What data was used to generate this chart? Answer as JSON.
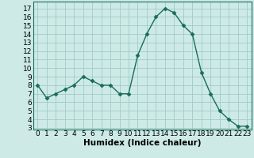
{
  "x": [
    0,
    1,
    2,
    3,
    4,
    5,
    6,
    7,
    8,
    9,
    10,
    11,
    12,
    13,
    14,
    15,
    16,
    17,
    18,
    19,
    20,
    21,
    22,
    23
  ],
  "y": [
    8,
    6.5,
    7,
    7.5,
    8,
    9,
    8.5,
    8,
    8,
    7,
    7,
    11.5,
    14,
    16,
    17,
    16.5,
    15,
    14,
    9.5,
    7,
    5,
    4,
    3.2,
    3.2
  ],
  "xlabel": "Humidex (Indice chaleur)",
  "xlim": [
    -0.5,
    23.5
  ],
  "ylim": [
    2.8,
    17.8
  ],
  "yticks": [
    3,
    4,
    5,
    6,
    7,
    8,
    9,
    10,
    11,
    12,
    13,
    14,
    15,
    16,
    17
  ],
  "xticks": [
    0,
    1,
    2,
    3,
    4,
    5,
    6,
    7,
    8,
    9,
    10,
    11,
    12,
    13,
    14,
    15,
    16,
    17,
    18,
    19,
    20,
    21,
    22,
    23
  ],
  "line_color": "#1a6b5a",
  "bg_color": "#ceeae7",
  "grid_color": "#9eccc7",
  "marker": "D",
  "marker_size": 2.5,
  "line_width": 1.0,
  "xlabel_fontsize": 7.5,
  "tick_fontsize": 6.5
}
